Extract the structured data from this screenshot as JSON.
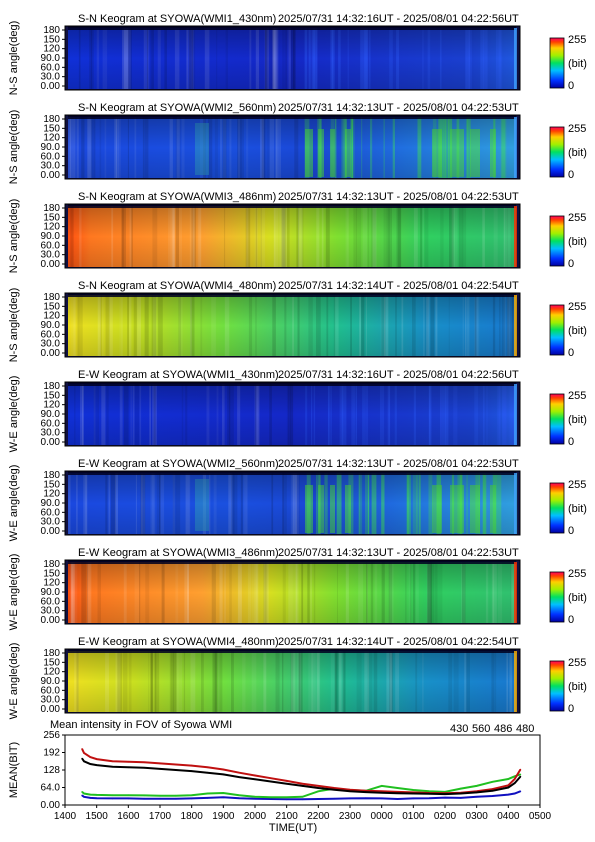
{
  "keograms": [
    {
      "title": "S-N Keogram at SYOWA(WMI1_430nm)",
      "time_range": "2025/07/31 14:32:16UT - 2025/08/01 04:22:56UT",
      "ylabel": "N-S angle(deg)",
      "profile": "blue"
    },
    {
      "title": "S-N Keogram at SYOWA(WMI2_560nm)",
      "time_range": "2025/07/31 14:32:13UT - 2025/08/01 04:22:53UT",
      "ylabel": "N-S angle(deg)",
      "profile": "green"
    },
    {
      "title": "S-N Keogram at SYOWA(WMI3_486nm)",
      "time_range": "2025/07/31 14:32:13UT - 2025/08/01 04:22:53UT",
      "ylabel": "N-S angle(deg)",
      "profile": "hot"
    },
    {
      "title": "S-N Keogram at SYOWA(WMI4_480nm)",
      "time_range": "2025/07/31 14:32:14UT - 2025/08/01 04:22:54UT",
      "ylabel": "N-S angle(deg)",
      "profile": "warm"
    },
    {
      "title": "E-W Keogram at SYOWA(WMI1_430nm)",
      "time_range": "2025/07/31 14:32:16UT - 2025/08/01 04:22:56UT",
      "ylabel": "W-E angle(deg)",
      "profile": "blue"
    },
    {
      "title": "E-W Keogram at SYOWA(WMI2_560nm)",
      "time_range": "2025/07/31 14:32:13UT - 2025/08/01 04:22:53UT",
      "ylabel": "W-E angle(deg)",
      "profile": "green"
    },
    {
      "title": "E-W Keogram at SYOWA(WMI3_486nm)",
      "time_range": "2025/07/31 14:32:13UT - 2025/08/01 04:22:53UT",
      "ylabel": "W-E angle(deg)",
      "profile": "hot"
    },
    {
      "title": "E-W Keogram at SYOWA(WMI4_480nm)",
      "time_range": "2025/07/31 14:32:14UT - 2025/08/01 04:22:54UT",
      "ylabel": "W-E angle(deg)",
      "profile": "warm"
    }
  ],
  "angle_ticks": [
    "0.00",
    "30.0",
    "60.0",
    "90.0",
    "120",
    "150",
    "180"
  ],
  "colorbar": {
    "max_label": "255",
    "unit_label": "(bit)",
    "min_label": "0"
  },
  "colors": {
    "c430": "#1010c0",
    "c560": "#20c020",
    "c486": "#c01010",
    "c480": "#000000"
  },
  "chart_data": {
    "type": "line",
    "title": "Mean intensity in FOV of Syowa WMI",
    "xlabel": "TIME(UT)",
    "ylabel": "MEAN(BIT)",
    "ylim": [
      0,
      256
    ],
    "xlim": [
      14,
      29
    ],
    "x_tick_labels": [
      "1400",
      "1500",
      "1600",
      "1700",
      "1800",
      "1900",
      "2000",
      "2100",
      "2200",
      "2300",
      "0000",
      "0100",
      "0200",
      "0300",
      "0400",
      "0500"
    ],
    "y_tick_labels": [
      "0.00",
      "64.0",
      "128",
      "192",
      "256"
    ],
    "y_ticks": [
      0,
      64,
      128,
      192,
      256
    ],
    "x": [
      14.54,
      14.6,
      14.8,
      15,
      15.5,
      16,
      16.5,
      17,
      17.5,
      18,
      18.5,
      19,
      19.5,
      20,
      20.5,
      21,
      21.5,
      22,
      22.5,
      23,
      23.5,
      24,
      24.5,
      25,
      25.5,
      26,
      26.5,
      27,
      27.5,
      28,
      28.2,
      28.38
    ],
    "series": [
      {
        "name": "430",
        "color": "#1010c0",
        "values": [
          35,
          30,
          26,
          25,
          24,
          24,
          23,
          23,
          23,
          24,
          26,
          28,
          25,
          23,
          22,
          21,
          21,
          22,
          23,
          24,
          25,
          24,
          22,
          24,
          25,
          27,
          26,
          30,
          33,
          38,
          42,
          50
        ]
      },
      {
        "name": "560",
        "color": "#20c020",
        "values": [
          48,
          42,
          38,
          37,
          36,
          36,
          35,
          34,
          34,
          36,
          42,
          44,
          36,
          30,
          28,
          28,
          30,
          50,
          60,
          55,
          52,
          70,
          62,
          55,
          50,
          48,
          60,
          70,
          85,
          95,
          105,
          112
        ]
      },
      {
        "name": "486",
        "color": "#c01010",
        "values": [
          205,
          190,
          175,
          168,
          160,
          158,
          156,
          152,
          148,
          144,
          138,
          130,
          118,
          108,
          98,
          88,
          78,
          70,
          62,
          56,
          52,
          50,
          48,
          46,
          44,
          43,
          45,
          50,
          58,
          72,
          95,
          130
        ]
      },
      {
        "name": "480",
        "color": "#000000",
        "values": [
          170,
          160,
          150,
          146,
          140,
          138,
          136,
          132,
          128,
          124,
          118,
          112,
          102,
          94,
          86,
          78,
          70,
          62,
          56,
          50,
          47,
          45,
          43,
          42,
          41,
          40,
          42,
          46,
          52,
          64,
          80,
          104
        ]
      }
    ]
  }
}
